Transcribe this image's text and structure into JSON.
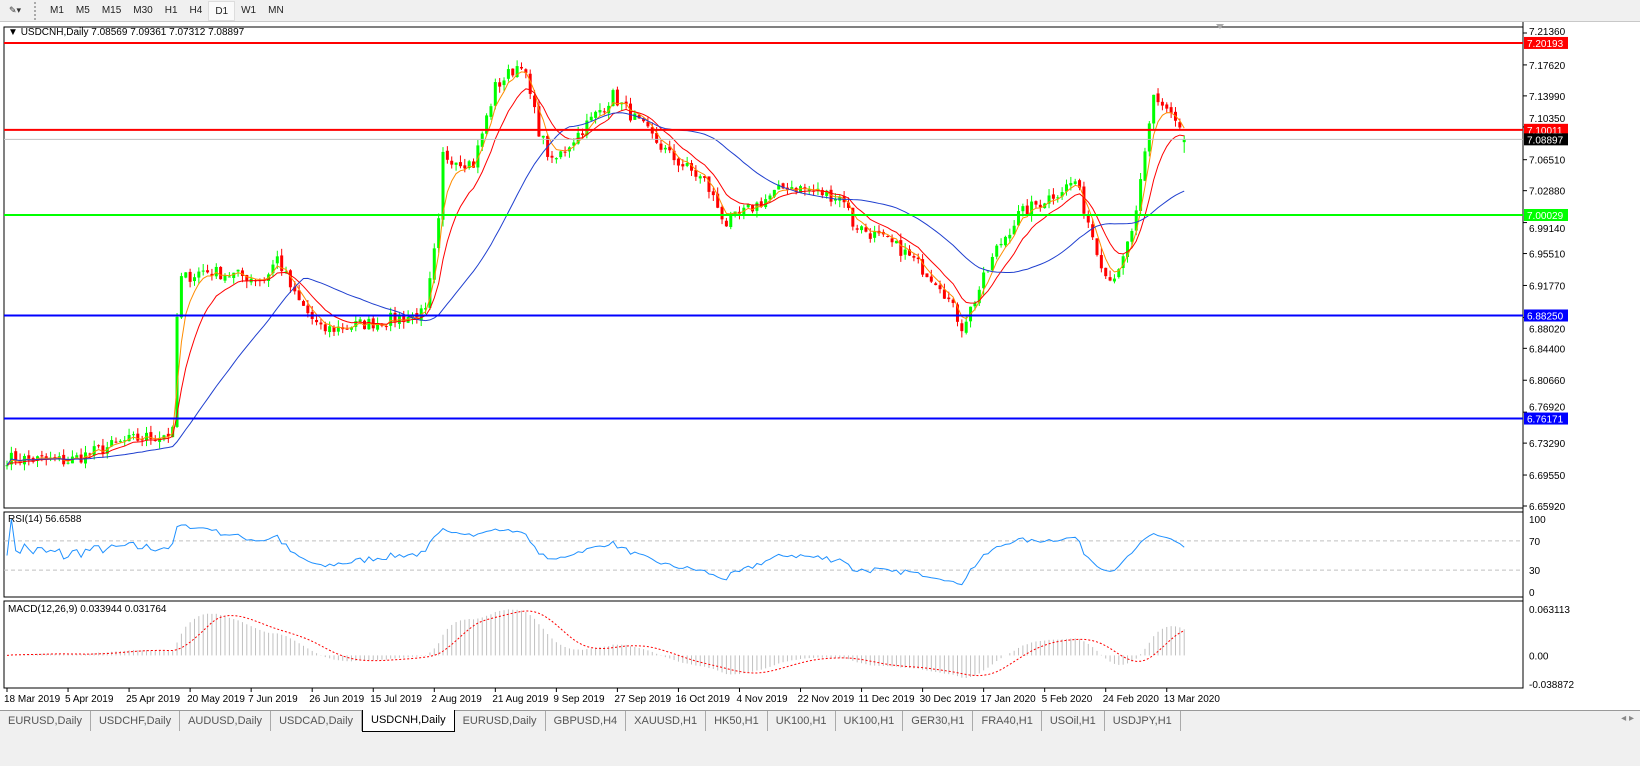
{
  "toolbar": {
    "timeframes": [
      "M1",
      "M5",
      "M15",
      "M30",
      "H1",
      "H4",
      "D1",
      "W1",
      "MN"
    ],
    "active": "D1"
  },
  "header": {
    "symbol": "USDCNH,Daily",
    "open": "7.08569",
    "high": "7.09361",
    "low": "7.07312",
    "close": "7.08897"
  },
  "price_axis": {
    "ticks": [
      "7.21360",
      "7.17620",
      "7.13990",
      "7.10350",
      "7.06510",
      "7.02880",
      "6.99140",
      "6.95510",
      "6.91770",
      "6.88020",
      "6.84400",
      "6.80660",
      "6.76920",
      "6.73290",
      "6.69550",
      "6.65920"
    ]
  },
  "levels": [
    {
      "value": "7.20193",
      "color": "#ff0000"
    },
    {
      "value": "7.10011",
      "color": "#ff0000"
    },
    {
      "value": "7.00029",
      "color": "#00ff00"
    },
    {
      "value": "6.88250",
      "color": "#0000ff"
    },
    {
      "value": "6.76171",
      "color": "#0000ff"
    }
  ],
  "current_price": {
    "value": "7.08897",
    "color": "#000000"
  },
  "colors": {
    "bull": "#00ff00",
    "bear": "#ff0000",
    "ma_fast": "#ff8c00",
    "ma_mid": "#ff0000",
    "ma_slow": "#1f3fcf",
    "rsi": "#1e90ff",
    "macd_hist": "#c0c0c0",
    "macd_signal": "#ff0000"
  },
  "price_path": [
    [
      "2019-03-18",
      6.715
    ],
    [
      "2019-04-05",
      6.712
    ],
    [
      "2019-04-24",
      6.735
    ],
    [
      "2019-05-09",
      6.745
    ],
    [
      "2019-05-10",
      6.88
    ],
    [
      "2019-05-13",
      6.925
    ],
    [
      "2019-05-20",
      6.935
    ],
    [
      "2019-06-07",
      6.925
    ],
    [
      "2019-06-12",
      6.95
    ],
    [
      "2019-06-18",
      6.905
    ],
    [
      "2019-06-26",
      6.865
    ],
    [
      "2019-07-15",
      6.875
    ],
    [
      "2019-07-30",
      6.885
    ],
    [
      "2019-08-02",
      6.99
    ],
    [
      "2019-08-05",
      7.07
    ],
    [
      "2019-08-14",
      7.06
    ],
    [
      "2019-08-21",
      7.15
    ],
    [
      "2019-08-29",
      7.18
    ],
    [
      "2019-09-04",
      7.1
    ],
    [
      "2019-09-09",
      7.06
    ],
    [
      "2019-09-16",
      7.09
    ],
    [
      "2019-09-27",
      7.14
    ],
    [
      "2019-10-16",
      7.07
    ],
    [
      "2019-10-28",
      7.04
    ],
    [
      "2019-11-04",
      6.99
    ],
    [
      "2019-11-22",
      7.035
    ],
    [
      "2019-12-11",
      7.02
    ],
    [
      "2019-12-13",
      6.99
    ],
    [
      "2019-12-30",
      6.96
    ],
    [
      "2020-01-10",
      6.92
    ],
    [
      "2020-01-17",
      6.87
    ],
    [
      "2020-01-21",
      6.89
    ],
    [
      "2020-01-29",
      6.96
    ],
    [
      "2020-02-05",
      7.0
    ],
    [
      "2020-02-24",
      7.04
    ],
    [
      "2020-03-04",
      6.93
    ],
    [
      "2020-03-09",
      6.93
    ],
    [
      "2020-03-13",
      7.0
    ],
    [
      "2020-03-19",
      7.14
    ],
    [
      "2020-03-25",
      7.12
    ],
    [
      "2020-03-30",
      7.089
    ]
  ],
  "rsi": {
    "label": "RSI(14) 56.6588",
    "ticks": [
      "100",
      "70",
      "30",
      "0"
    ]
  },
  "macd": {
    "label": "MACD(12,26,9) 0.033944 0.031764",
    "ticks": [
      "0.063113",
      "0.00",
      "-0.038872"
    ]
  },
  "x_axis": {
    "labels": [
      "18 Mar 2019",
      "5 Apr 2019",
      "25 Apr 2019",
      "20 May 2019",
      "7 Jun 2019",
      "26 Jun 2019",
      "15 Jul 2019",
      "2 Aug 2019",
      "21 Aug 2019",
      "9 Sep 2019",
      "27 Sep 2019",
      "16 Oct 2019",
      "4 Nov 2019",
      "22 Nov 2019",
      "11 Dec 2019",
      "30 Dec 2019",
      "17 Jan 2020",
      "5 Feb 2020",
      "24 Feb 2020",
      "13 Mar 2020"
    ]
  },
  "tabs": [
    "EURUSD,Daily",
    "USDCHF,Daily",
    "AUDUSD,Daily",
    "USDCAD,Daily",
    "USDCNH,Daily",
    "EURUSD,Daily",
    "GBPUSD,H4",
    "XAUUSD,H1",
    "HK50,H1",
    "UK100,H1",
    "UK100,H1",
    "GER30,H1",
    "FRA40,H1",
    "USOil,H1",
    "USDJPY,H1"
  ],
  "active_tab": 4
}
